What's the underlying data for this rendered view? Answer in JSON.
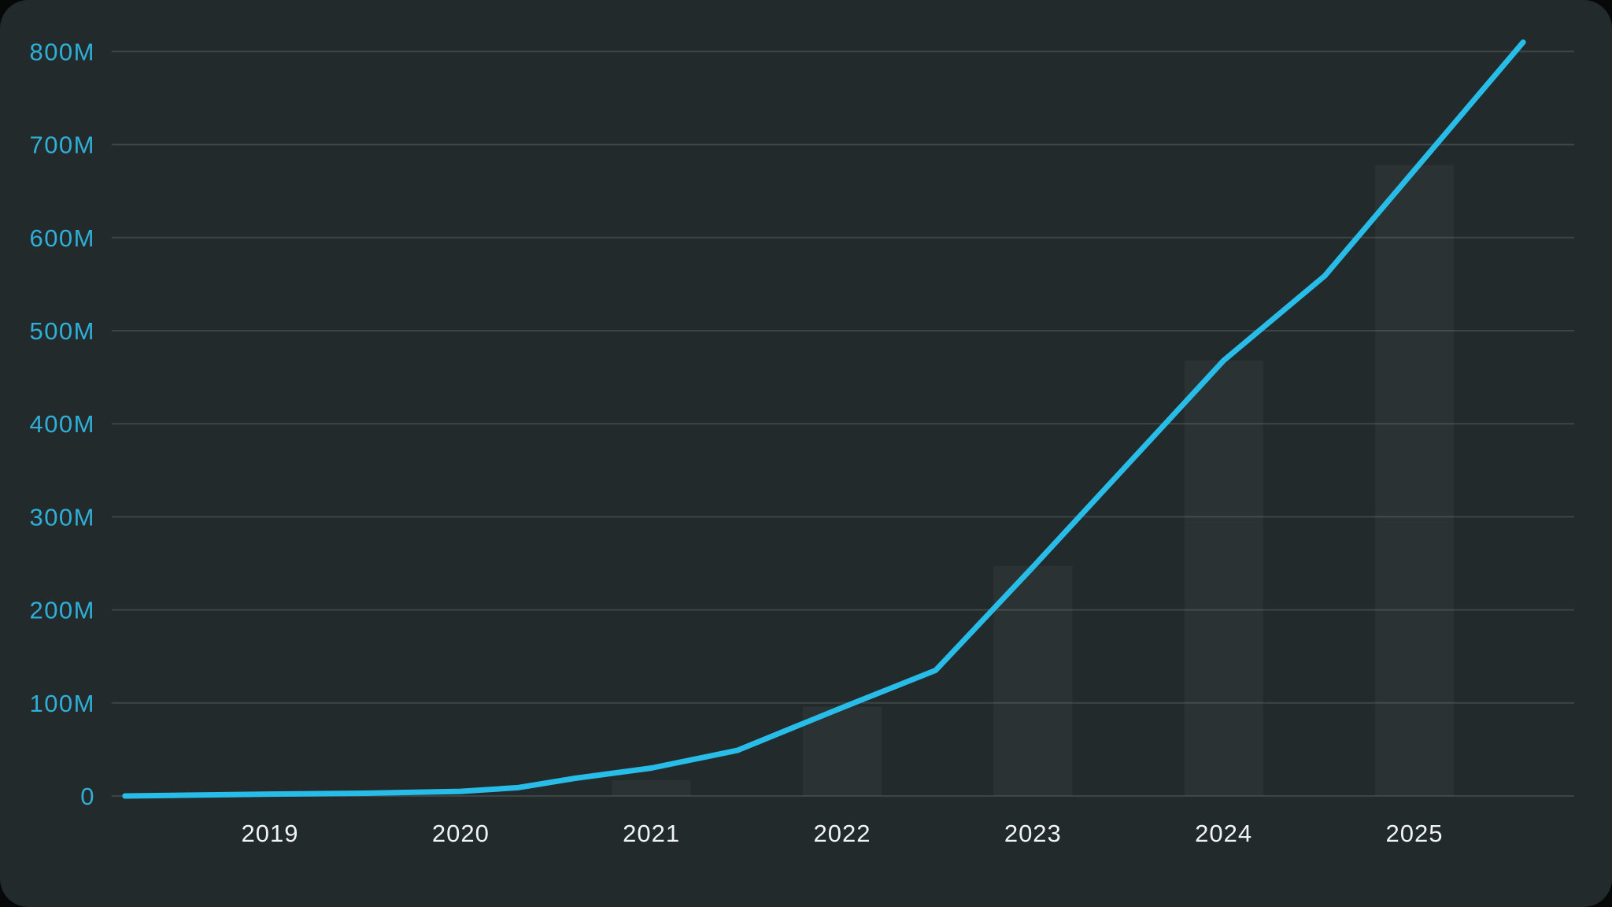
{
  "chart_data": {
    "type": "line",
    "title": "",
    "xlabel": "",
    "ylabel": "",
    "x_ticks": [
      "2019",
      "2020",
      "2021",
      "2022",
      "2023",
      "2024",
      "2025"
    ],
    "y_ticks": [
      "0",
      "100M",
      "200M",
      "300M",
      "400M",
      "500M",
      "600M",
      "700M",
      "800M"
    ],
    "y_tick_values": [
      0,
      100,
      200,
      300,
      400,
      500,
      600,
      700,
      800
    ],
    "y_unit": "M",
    "ylim": [
      0,
      830
    ],
    "xlim": [
      2018.22,
      2025.85
    ],
    "grid": true,
    "legend": false,
    "series": [
      {
        "name": "growth-line",
        "type": "line",
        "points": [
          {
            "x": 2018.24,
            "y": 0
          },
          {
            "x": 2019.0,
            "y": 2
          },
          {
            "x": 2019.5,
            "y": 3
          },
          {
            "x": 2020.0,
            "y": 5
          },
          {
            "x": 2020.3,
            "y": 9
          },
          {
            "x": 2020.6,
            "y": 19
          },
          {
            "x": 2021.0,
            "y": 30
          },
          {
            "x": 2021.45,
            "y": 49
          },
          {
            "x": 2022.0,
            "y": 95
          },
          {
            "x": 2022.49,
            "y": 135
          },
          {
            "x": 2023.0,
            "y": 246
          },
          {
            "x": 2024.0,
            "y": 468
          },
          {
            "x": 2024.53,
            "y": 559
          },
          {
            "x": 2025.57,
            "y": 810
          }
        ]
      },
      {
        "name": "year-bars",
        "type": "bar",
        "categories": [
          "2019",
          "2020",
          "2021",
          "2022",
          "2023",
          "2024",
          "2025"
        ],
        "values": [
          0,
          0,
          17,
          96,
          247,
          468,
          678
        ]
      }
    ],
    "colors": {
      "background": "#232A2B",
      "outer_background": "#070909",
      "line": "#27BDE8",
      "y_label": "#2FAFD7",
      "x_label": "#F2F4F4",
      "gridline": "#3D4445",
      "bar": "rgba(255,255,255,0.038)"
    }
  }
}
